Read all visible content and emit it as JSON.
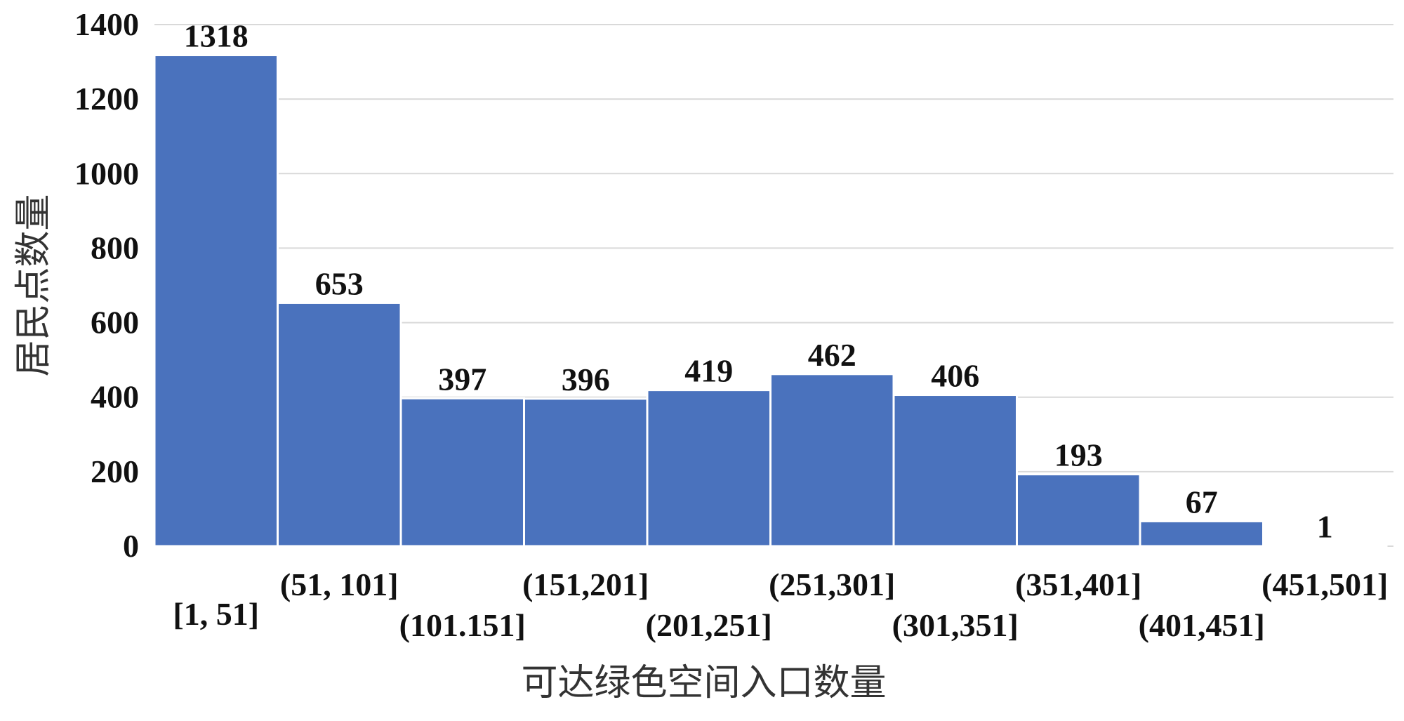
{
  "chart_data": {
    "type": "bar",
    "categories": [
      "[1, 51]",
      "(51, 101]",
      "(101.151]",
      "(151,201]",
      "(201,251]",
      "(251,301]",
      "(301,351]",
      "(351,401]",
      "(401,451]",
      "(451,501]"
    ],
    "values": [
      1318,
      653,
      397,
      396,
      419,
      462,
      406,
      193,
      67,
      1
    ],
    "data_labels": [
      "1318",
      "653",
      "397",
      "396",
      "419",
      "462",
      "406",
      "193",
      "67",
      "1"
    ],
    "title": "",
    "xlabel": "可达绿色空间入口数量",
    "ylabel": "居民点数量",
    "ylim": [
      0,
      1400
    ],
    "yticks": [
      "0",
      "200",
      "400",
      "600",
      "800",
      "1000",
      "1200",
      "1400"
    ],
    "grid": true,
    "legend": "none",
    "bar_color": "#4a72bd"
  }
}
